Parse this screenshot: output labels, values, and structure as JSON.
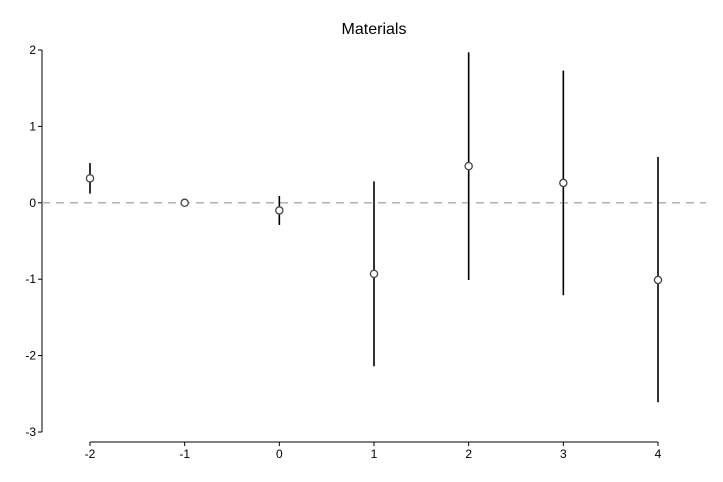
{
  "chart_data": {
    "type": "scatter",
    "title": "Materials",
    "xlabel": "",
    "ylabel": "",
    "x_ticks": [
      "-2",
      "-1",
      "0",
      "1",
      "2",
      "3",
      "4"
    ],
    "y_ticks": [
      "2",
      "1",
      "0",
      "-1",
      "-2",
      "-3"
    ],
    "xlim": [
      -2,
      4
    ],
    "ylim": [
      -3,
      2
    ],
    "reference_line": 0,
    "grid": false,
    "series": [
      {
        "points": [
          {
            "x": -2,
            "y": 0.32,
            "low": 0.12,
            "high": 0.52
          },
          {
            "x": -1,
            "y": 0.0,
            "low": 0.0,
            "high": 0.0
          },
          {
            "x": 0,
            "y": -0.1,
            "low": -0.29,
            "high": 0.09
          },
          {
            "x": 1,
            "y": -0.93,
            "low": -2.14,
            "high": 0.28
          },
          {
            "x": 2,
            "y": 0.48,
            "low": -1.01,
            "high": 1.97
          },
          {
            "x": 3,
            "y": 0.26,
            "low": -1.21,
            "high": 1.73
          },
          {
            "x": 4,
            "y": -1.01,
            "low": -2.61,
            "high": 0.6
          }
        ]
      }
    ],
    "colors": {
      "marker": "#444444",
      "errorbar": "#000000",
      "refline": "#aaaaaa",
      "axis": "#000000"
    }
  }
}
